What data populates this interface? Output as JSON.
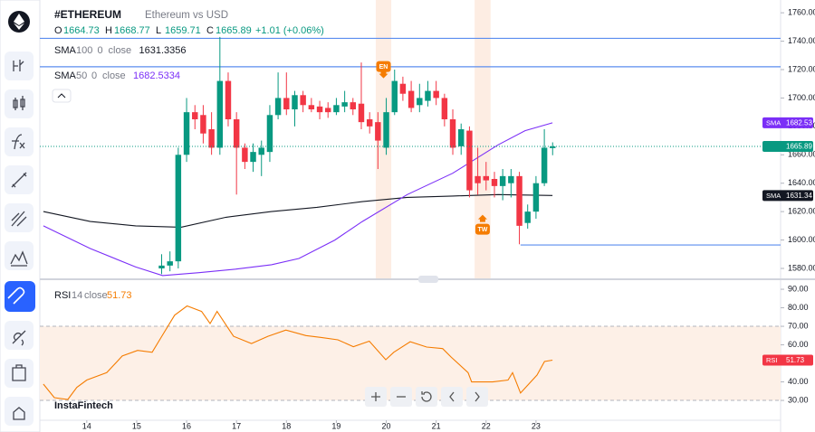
{
  "header": {
    "symbol": "#ETHEREUM",
    "description": "Ethereum vs USD",
    "ohlc_keys": [
      "O",
      "H",
      "L",
      "C"
    ],
    "change": "+1.01 (+0.06%)",
    "brand": "InstaFintech"
  },
  "chart_data": [
    {
      "type": "candlestick",
      "xlim": [
        13.06,
        27.9
      ],
      "xticks": [
        14,
        15,
        16,
        17,
        18,
        19,
        20,
        21,
        22,
        23
      ],
      "ylim": [
        1573,
        1769
      ],
      "yticks": [
        {
          "value": 1580,
          "label": "1580.00"
        },
        {
          "value": 1600,
          "label": "1600.00"
        },
        {
          "value": 1620,
          "label": "1620.00"
        },
        {
          "value": 1640,
          "label": "1640.00"
        },
        {
          "value": 1660,
          "label": "1660.00"
        },
        {
          "value": 1680,
          "label": "1680.00"
        },
        {
          "value": 1700,
          "label": "1700.00"
        },
        {
          "value": 1720,
          "label": "1720.00"
        },
        {
          "value": 1740,
          "label": "1740.00"
        },
        {
          "value": 1760,
          "label": "1760.00"
        }
      ],
      "up_color": "#089981",
      "down_color": "#f23645",
      "x": [
        15.5,
        15.667,
        15.833,
        16,
        16.167,
        16.333,
        16.5,
        16.667,
        16.833,
        17,
        17.167,
        17.333,
        17.5,
        17.667,
        17.833,
        18,
        18.167,
        18.333,
        18.5,
        18.667,
        18.833,
        19,
        19.167,
        19.333,
        19.5,
        19.667,
        19.833,
        20,
        20.167,
        20.333,
        20.5,
        20.667,
        20.833,
        21,
        21.167,
        21.333,
        21.5,
        21.667,
        21.833,
        22,
        22.167,
        22.333,
        22.5,
        22.667,
        22.833,
        23,
        23.167,
        23.333
      ],
      "open": [
        1580,
        1582,
        1585,
        1660,
        1690,
        1688,
        1678,
        1665,
        1712,
        1685,
        1665,
        1655,
        1660,
        1662,
        1688,
        1700,
        1692,
        1702,
        1695,
        1694,
        1693,
        1690,
        1694,
        1697,
        1696,
        1685,
        1683,
        1665,
        1690,
        1710,
        1705,
        1695,
        1698,
        1705,
        1700,
        1685,
        1666,
        1677,
        1645,
        1645,
        1643,
        1638,
        1640,
        1645,
        1612,
        1620,
        1640,
        1664.73
      ],
      "high": [
        1590,
        1592,
        1665,
        1700,
        1695,
        1695,
        1690,
        1743,
        1718,
        1690,
        1668,
        1668,
        1670,
        1695,
        1718,
        1718,
        1705,
        1705,
        1700,
        1698,
        1697,
        1700,
        1705,
        1700,
        1725,
        1690,
        1690,
        1700,
        1720,
        1715,
        1712,
        1710,
        1712,
        1712,
        1703,
        1692,
        1682,
        1680,
        1665,
        1655,
        1648,
        1650,
        1650,
        1648,
        1625,
        1645,
        1678,
        1668.77
      ],
      "low": [
        1576,
        1578,
        1580,
        1655,
        1678,
        1668,
        1660,
        1660,
        1680,
        1632,
        1650,
        1648,
        1645,
        1655,
        1685,
        1688,
        1680,
        1690,
        1690,
        1685,
        1686,
        1688,
        1690,
        1688,
        1678,
        1675,
        1650,
        1660,
        1688,
        1698,
        1690,
        1690,
        1694,
        1695,
        1680,
        1660,
        1660,
        1630,
        1632,
        1635,
        1630,
        1628,
        1630,
        1597,
        1608,
        1615,
        1638,
        1659.71
      ],
      "close": [
        1582,
        1585,
        1660,
        1690,
        1685,
        1675,
        1665,
        1712,
        1685,
        1665,
        1655,
        1662,
        1665,
        1688,
        1700,
        1692,
        1702,
        1695,
        1692,
        1690,
        1690,
        1695,
        1697,
        1692,
        1683,
        1680,
        1670,
        1690,
        1712,
        1703,
        1693,
        1700,
        1705,
        1700,
        1685,
        1665,
        1678,
        1635,
        1640,
        1642,
        1638,
        1645,
        1645,
        1610,
        1620,
        1640,
        1665,
        1665.89
      ],
      "series": [
        {
          "name": "SMA",
          "length": "100",
          "offset": "0",
          "source": "close",
          "legend_value": "1631.3356",
          "color": "#131722",
          "x": [
            13.13,
            14.07,
            14.98,
            15.89,
            16.79,
            17.7,
            18.61,
            19.52,
            20.42,
            21.33,
            22.24,
            23.33
          ],
          "values": [
            1620,
            1613,
            1610,
            1609,
            1616,
            1620,
            1623,
            1627,
            1630,
            1631,
            1632,
            1631.34
          ]
        },
        {
          "name": "SMA",
          "length": "50",
          "offset": "0",
          "source": "close",
          "legend_value": "1682.5334",
          "color": "#7b2ff7",
          "x": [
            13.13,
            14.07,
            14.98,
            15.52,
            16.25,
            16.98,
            17.7,
            18.25,
            18.97,
            19.52,
            20.42,
            21.33,
            22.24,
            22.78,
            23.33
          ],
          "values": [
            1610,
            1594,
            1581,
            1575,
            1577,
            1579.5,
            1582.6,
            1587,
            1600,
            1613,
            1632,
            1647,
            1667,
            1677,
            1682.53
          ]
        }
      ],
      "levels": [
        {
          "value": 1742,
          "color": "#5b8def"
        },
        {
          "value": 1722,
          "color": "#5b8def"
        },
        {
          "value": 1596.5,
          "color": "#5b8def",
          "x_start": 22.69
        }
      ],
      "ranges": [
        {
          "x": [
            19.79,
            20.1
          ],
          "label": "EN",
          "price": 1712,
          "direction": "down"
        },
        {
          "x": [
            21.77,
            22.09
          ],
          "label": "TW",
          "price": 1614,
          "direction": "up"
        }
      ]
    },
    {
      "type": "line",
      "name": "RSI",
      "length": "14",
      "source": "close",
      "color": "#f57c00",
      "tag_color": "#f23645",
      "xlim": [
        13.06,
        27.9
      ],
      "ylim": [
        19.3,
        94.9
      ],
      "yticks": [
        {
          "value": 30,
          "label": "30.00"
        },
        {
          "value": 40,
          "label": "40.00"
        },
        {
          "value": 50,
          "label": "50.00"
        },
        {
          "value": 60,
          "label": "60.00"
        },
        {
          "value": 70,
          "label": "70.00"
        },
        {
          "value": 80,
          "label": "80.00"
        },
        {
          "value": 90,
          "label": "90.00"
        }
      ],
      "bands": [
        30,
        70
      ],
      "x": [
        13.13,
        13.35,
        13.62,
        13.8,
        14.0,
        14.4,
        14.71,
        15.02,
        15.31,
        15.49,
        15.76,
        16.01,
        16.3,
        16.47,
        16.61,
        16.94,
        17.3,
        17.63,
        17.99,
        18.39,
        18.7,
        19.03,
        19.34,
        19.66,
        19.99,
        20.15,
        20.48,
        20.81,
        21.13,
        21.3,
        21.64,
        21.71,
        22.13,
        22.44,
        22.53,
        22.69,
        23.02,
        23.17,
        23.33
      ],
      "values": [
        38.8,
        31.5,
        30.5,
        37,
        41,
        45,
        54,
        57,
        56,
        64,
        76,
        81,
        78,
        71.5,
        78,
        64.6,
        60.7,
        64.6,
        68,
        65,
        64,
        62.7,
        59,
        62,
        52,
        56,
        61.7,
        58.8,
        58,
        53.4,
        45,
        40,
        40,
        41,
        45,
        34,
        43.7,
        51,
        51.73
      ]
    }
  ]
}
